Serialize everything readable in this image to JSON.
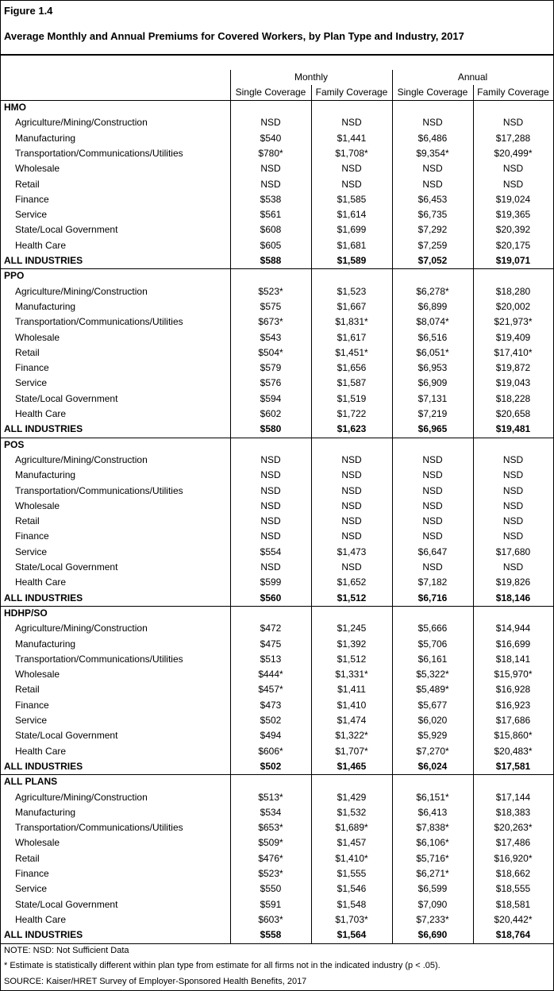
{
  "header": {
    "figure": "Figure 1.4",
    "title": "Average Monthly and Annual Premiums for Covered Workers, by Plan Type and Industry, 2017"
  },
  "table": {
    "groups": [
      "Monthly",
      "Annual"
    ],
    "columns": [
      "Single Coverage",
      "Family Coverage",
      "Single Coverage",
      "Family Coverage"
    ],
    "sections": [
      {
        "name": "HMO",
        "rows": [
          [
            "Agriculture/Mining/Construction",
            "NSD",
            "NSD",
            "NSD",
            "NSD"
          ],
          [
            "Manufacturing",
            "$540",
            "$1,441",
            "$6,486",
            "$17,288"
          ],
          [
            "Transportation/Communications/Utilities",
            "$780*",
            "$1,708*",
            "$9,354*",
            "$20,499*"
          ],
          [
            "Wholesale",
            "NSD",
            "NSD",
            "NSD",
            "NSD"
          ],
          [
            "Retail",
            "NSD",
            "NSD",
            "NSD",
            "NSD"
          ],
          [
            "Finance",
            "$538",
            "$1,585",
            "$6,453",
            "$19,024"
          ],
          [
            "Service",
            "$561",
            "$1,614",
            "$6,735",
            "$19,365"
          ],
          [
            "State/Local Government",
            "$608",
            "$1,699",
            "$7,292",
            "$20,392"
          ],
          [
            "Health Care",
            "$605",
            "$1,681",
            "$7,259",
            "$20,175"
          ],
          [
            "ALL INDUSTRIES",
            "$588",
            "$1,589",
            "$7,052",
            "$19,071"
          ]
        ]
      },
      {
        "name": "PPO",
        "rows": [
          [
            "Agriculture/Mining/Construction",
            "$523*",
            "$1,523",
            "$6,278*",
            "$18,280"
          ],
          [
            "Manufacturing",
            "$575",
            "$1,667",
            "$6,899",
            "$20,002"
          ],
          [
            "Transportation/Communications/Utilities",
            "$673*",
            "$1,831*",
            "$8,074*",
            "$21,973*"
          ],
          [
            "Wholesale",
            "$543",
            "$1,617",
            "$6,516",
            "$19,409"
          ],
          [
            "Retail",
            "$504*",
            "$1,451*",
            "$6,051*",
            "$17,410*"
          ],
          [
            "Finance",
            "$579",
            "$1,656",
            "$6,953",
            "$19,872"
          ],
          [
            "Service",
            "$576",
            "$1,587",
            "$6,909",
            "$19,043"
          ],
          [
            "State/Local Government",
            "$594",
            "$1,519",
            "$7,131",
            "$18,228"
          ],
          [
            "Health Care",
            "$602",
            "$1,722",
            "$7,219",
            "$20,658"
          ],
          [
            "ALL INDUSTRIES",
            "$580",
            "$1,623",
            "$6,965",
            "$19,481"
          ]
        ]
      },
      {
        "name": "POS",
        "rows": [
          [
            "Agriculture/Mining/Construction",
            "NSD",
            "NSD",
            "NSD",
            "NSD"
          ],
          [
            "Manufacturing",
            "NSD",
            "NSD",
            "NSD",
            "NSD"
          ],
          [
            "Transportation/Communications/Utilities",
            "NSD",
            "NSD",
            "NSD",
            "NSD"
          ],
          [
            "Wholesale",
            "NSD",
            "NSD",
            "NSD",
            "NSD"
          ],
          [
            "Retail",
            "NSD",
            "NSD",
            "NSD",
            "NSD"
          ],
          [
            "Finance",
            "NSD",
            "NSD",
            "NSD",
            "NSD"
          ],
          [
            "Service",
            "$554",
            "$1,473",
            "$6,647",
            "$17,680"
          ],
          [
            "State/Local Government",
            "NSD",
            "NSD",
            "NSD",
            "NSD"
          ],
          [
            "Health Care",
            "$599",
            "$1,652",
            "$7,182",
            "$19,826"
          ],
          [
            "ALL INDUSTRIES",
            "$560",
            "$1,512",
            "$6,716",
            "$18,146"
          ]
        ]
      },
      {
        "name": "HDHP/SO",
        "rows": [
          [
            "Agriculture/Mining/Construction",
            "$472",
            "$1,245",
            "$5,666",
            "$14,944"
          ],
          [
            "Manufacturing",
            "$475",
            "$1,392",
            "$5,706",
            "$16,699"
          ],
          [
            "Transportation/Communications/Utilities",
            "$513",
            "$1,512",
            "$6,161",
            "$18,141"
          ],
          [
            "Wholesale",
            "$444*",
            "$1,331*",
            "$5,322*",
            "$15,970*"
          ],
          [
            "Retail",
            "$457*",
            "$1,411",
            "$5,489*",
            "$16,928"
          ],
          [
            "Finance",
            "$473",
            "$1,410",
            "$5,677",
            "$16,923"
          ],
          [
            "Service",
            "$502",
            "$1,474",
            "$6,020",
            "$17,686"
          ],
          [
            "State/Local Government",
            "$494",
            "$1,322*",
            "$5,929",
            "$15,860*"
          ],
          [
            "Health Care",
            "$606*",
            "$1,707*",
            "$7,270*",
            "$20,483*"
          ],
          [
            "ALL INDUSTRIES",
            "$502",
            "$1,465",
            "$6,024",
            "$17,581"
          ]
        ]
      },
      {
        "name": "ALL PLANS",
        "rows": [
          [
            "Agriculture/Mining/Construction",
            "$513*",
            "$1,429",
            "$6,151*",
            "$17,144"
          ],
          [
            "Manufacturing",
            "$534",
            "$1,532",
            "$6,413",
            "$18,383"
          ],
          [
            "Transportation/Communications/Utilities",
            "$653*",
            "$1,689*",
            "$7,838*",
            "$20,263*"
          ],
          [
            "Wholesale",
            "$509*",
            "$1,457",
            "$6,106*",
            "$17,486"
          ],
          [
            "Retail",
            "$476*",
            "$1,410*",
            "$5,716*",
            "$16,920*"
          ],
          [
            "Finance",
            "$523*",
            "$1,555",
            "$6,271*",
            "$18,662"
          ],
          [
            "Service",
            "$550",
            "$1,546",
            "$6,599",
            "$18,555"
          ],
          [
            "State/Local Government",
            "$591",
            "$1,548",
            "$7,090",
            "$18,581"
          ],
          [
            "Health Care",
            "$603*",
            "$1,703*",
            "$7,233*",
            "$20,442*"
          ],
          [
            "ALL INDUSTRIES",
            "$558",
            "$1,564",
            "$6,690",
            "$18,764"
          ]
        ]
      }
    ]
  },
  "notes": [
    "NOTE: NSD: Not Sufficient Data",
    "* Estimate is statistically different within plan type from estimate for all firms not in the indicated industry (p < .05).",
    "SOURCE: Kaiser/HRET Survey of Employer-Sponsored Health Benefits, 2017"
  ]
}
